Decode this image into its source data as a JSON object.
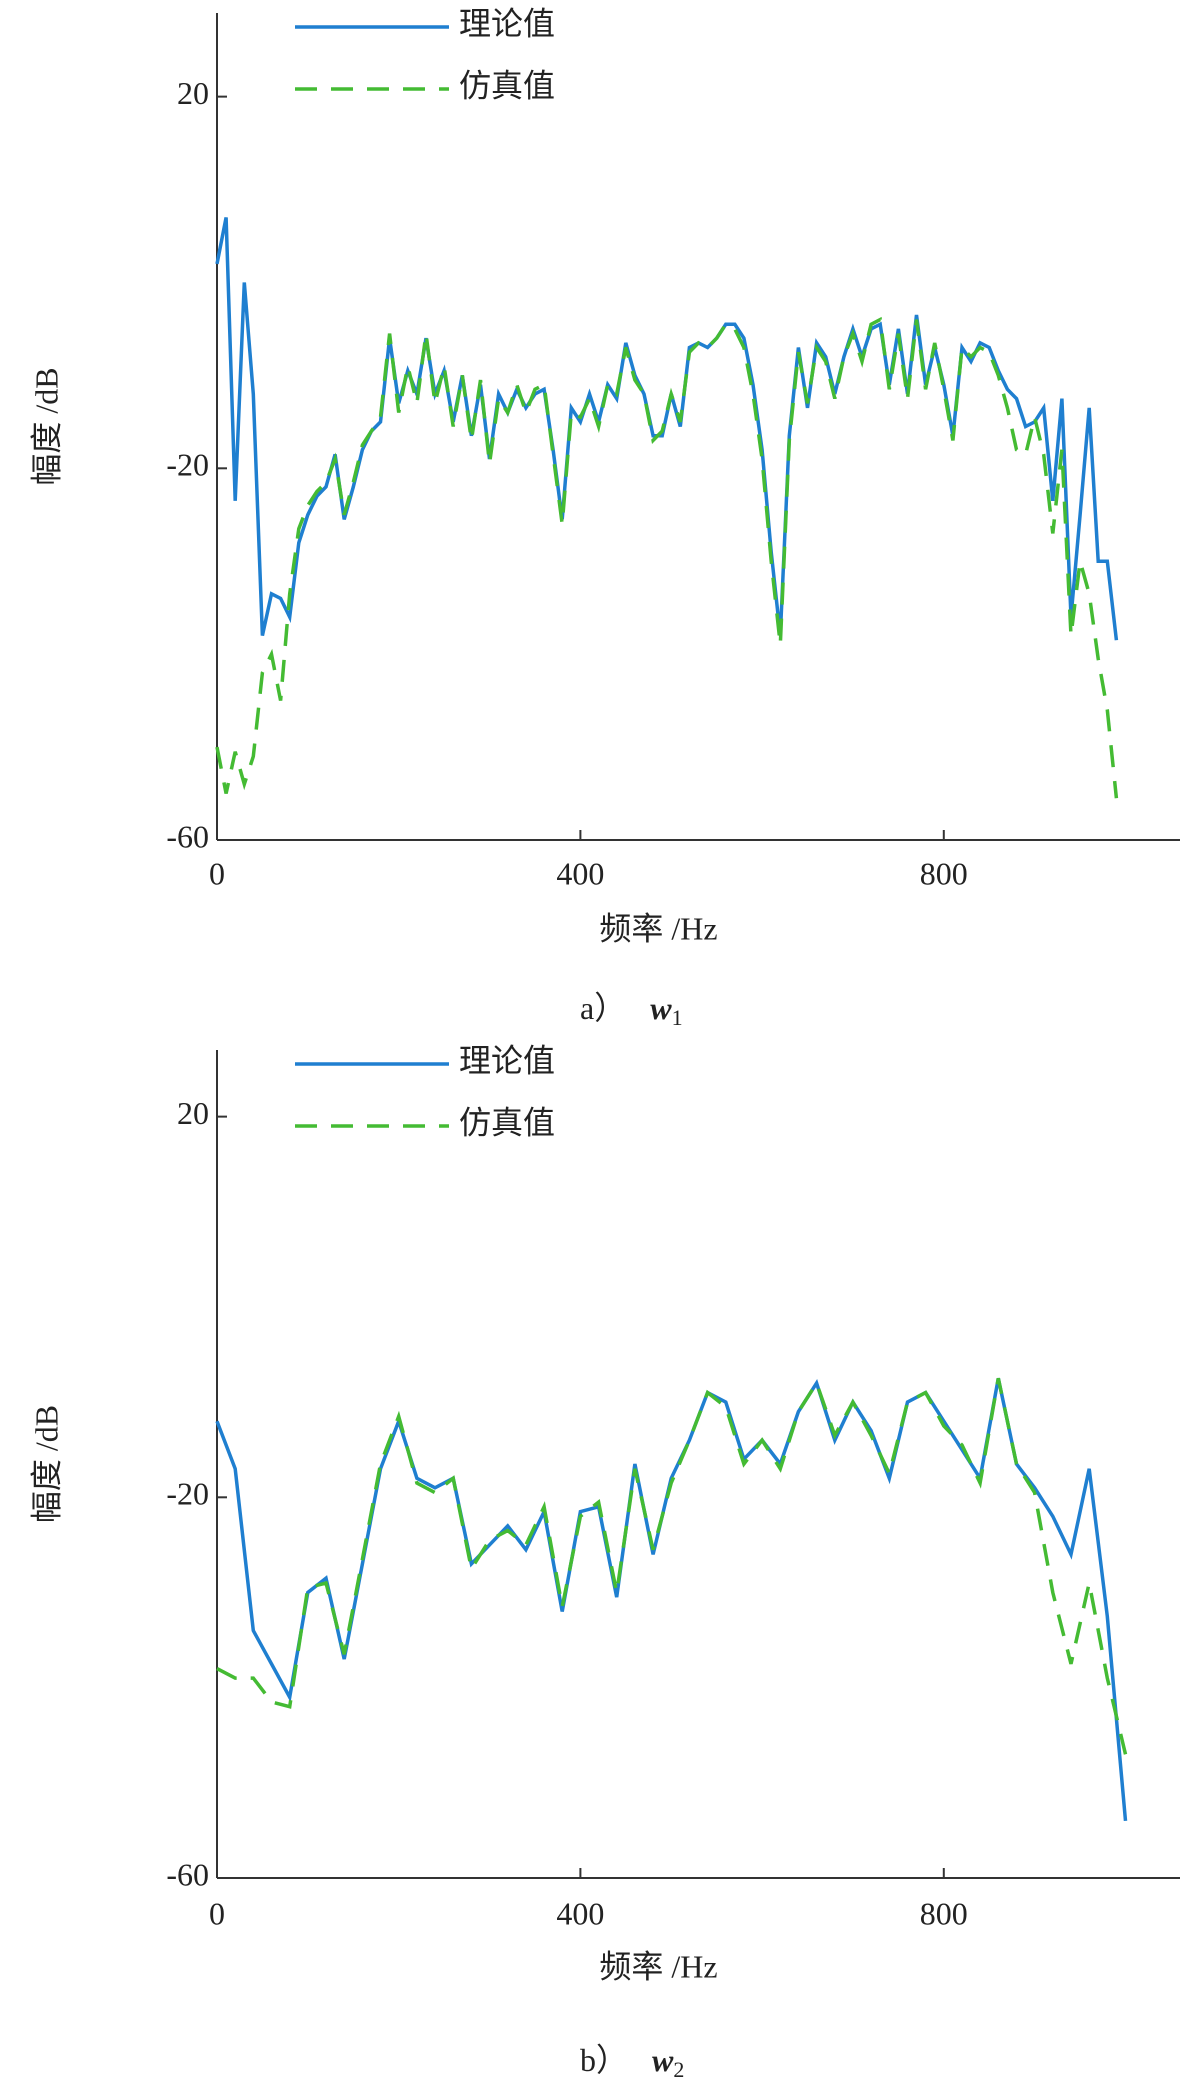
{
  "chart_data": [
    {
      "type": "line",
      "ylabel": "幅度 /dB",
      "xlabel": "频率 /Hz",
      "caption_label": "a）",
      "caption_symbol": "w",
      "caption_subscript": "1",
      "xlim": [
        0,
        1060
      ],
      "ylim": [
        -60,
        29
      ],
      "xticks": [
        0,
        400,
        800
      ],
      "yticks": [
        -60,
        -20,
        20
      ],
      "legend": "upper left",
      "x": [
        0,
        10,
        20,
        30,
        40,
        50,
        60,
        70,
        80,
        90,
        100,
        110,
        120,
        130,
        140,
        150,
        160,
        170,
        180,
        190,
        200,
        210,
        220,
        230,
        240,
        250,
        260,
        270,
        280,
        290,
        300,
        310,
        320,
        330,
        340,
        350,
        360,
        370,
        380,
        390,
        400,
        410,
        420,
        430,
        440,
        450,
        460,
        470,
        480,
        490,
        500,
        510,
        520,
        530,
        540,
        550,
        560,
        570,
        580,
        590,
        600,
        610,
        620,
        630,
        640,
        650,
        660,
        670,
        680,
        690,
        700,
        710,
        720,
        730,
        740,
        750,
        760,
        770,
        780,
        790,
        800,
        810,
        820,
        830,
        840,
        850,
        860,
        870,
        880,
        890,
        900,
        910,
        920,
        930,
        940,
        950,
        960,
        970,
        980,
        990
      ],
      "series": [
        {
          "name": "理论值",
          "color": "#1f7fd0",
          "linestyle": "solid",
          "values": [
            2,
            7,
            -23.5,
            0,
            -12,
            -38,
            -33.5,
            -34,
            -36,
            -28,
            -25,
            -23,
            -22,
            -18.5,
            -25.5,
            -22,
            -18,
            -16,
            -15,
            -6,
            -13,
            -9.5,
            -12,
            -6,
            -12,
            -9.5,
            -15,
            -10,
            -16.5,
            -11,
            -19,
            -12,
            -14,
            -11.5,
            -13.5,
            -12,
            -11.5,
            -18,
            -25.5,
            -13.5,
            -15,
            -12,
            -15,
            -11,
            -12.5,
            -6.5,
            -10,
            -12,
            -16.5,
            -16.5,
            -12,
            -15.5,
            -7,
            -6.5,
            -7,
            -6,
            -4.5,
            -4.5,
            -6,
            -11,
            -18,
            -29,
            -38,
            -16.5,
            -7,
            -13.5,
            -6.5,
            -8,
            -12,
            -8,
            -5,
            -8,
            -5,
            -4.5,
            -11,
            -5,
            -12,
            -3.5,
            -11,
            -7,
            -11,
            -16.5,
            -7,
            -8.5,
            -6.5,
            -7,
            -9.5,
            -11.5,
            -12.5,
            -15.5,
            -15,
            -13.5,
            -23.5,
            -12.5,
            -36,
            -25,
            -13.5,
            -30,
            -30,
            -38.5
          ]
        },
        {
          "name": "仿真值",
          "color": "#44bb33",
          "linestyle": "dashed",
          "values": [
            -50,
            -55,
            -50.5,
            -54,
            -51,
            -42,
            -40,
            -45,
            -33.5,
            -26.5,
            -24,
            -22.5,
            -21.5,
            -19,
            -25,
            -21.5,
            -17.5,
            -16,
            -14.5,
            -5.5,
            -14,
            -9,
            -13,
            -5.5,
            -13,
            -9,
            -15.5,
            -10,
            -17,
            -10.5,
            -19.5,
            -12.5,
            -14,
            -11,
            -14,
            -11.5,
            -11,
            -18.5,
            -26,
            -14,
            -14.5,
            -12.5,
            -15.5,
            -11,
            -12,
            -7,
            -10.5,
            -12,
            -17,
            -16,
            -12,
            -15,
            -7.5,
            -6.5,
            -7,
            -6,
            -4.5,
            -5,
            -7,
            -12,
            -19,
            -30,
            -39,
            -17,
            -7.5,
            -13,
            -7,
            -8.5,
            -12.5,
            -8,
            -5.5,
            -8.5,
            -4.5,
            -4,
            -11.5,
            -5.5,
            -12.5,
            -4,
            -11.5,
            -6.5,
            -11.5,
            -17,
            -7,
            -8,
            -7,
            -7.5,
            -10,
            -13.5,
            -18,
            -18.5,
            -14.5,
            -18.5,
            -27,
            -18,
            -38,
            -30,
            -33.5,
            -40.5,
            -46,
            -55.5
          ]
        }
      ]
    },
    {
      "type": "line",
      "ylabel": "幅度 /dB",
      "xlabel": "频率 /Hz",
      "caption_label": "b）",
      "caption_symbol": "w",
      "caption_subscript": "2",
      "xlim": [
        0,
        1060
      ],
      "ylim": [
        -60,
        27
      ],
      "xticks": [
        0,
        400,
        800
      ],
      "yticks": [
        -60,
        -20,
        20
      ],
      "legend": "upper left",
      "x": [
        0,
        20,
        40,
        60,
        80,
        100,
        120,
        140,
        160,
        180,
        200,
        220,
        240,
        260,
        280,
        300,
        320,
        340,
        360,
        380,
        400,
        420,
        440,
        460,
        480,
        500,
        520,
        540,
        560,
        580,
        600,
        620,
        640,
        660,
        680,
        700,
        720,
        740,
        760,
        780,
        800,
        820,
        840,
        860,
        880,
        900,
        920,
        940,
        960,
        980,
        1000
      ],
      "series": [
        {
          "name": "理论值",
          "color": "#1f7fd0",
          "linestyle": "solid",
          "values": [
            -12,
            -17,
            -34,
            -37.5,
            -41,
            -30,
            -28.5,
            -37,
            -27,
            -17,
            -12,
            -18,
            -19,
            -18,
            -27,
            -25,
            -23,
            -25.5,
            -21.5,
            -32,
            -21.5,
            -21,
            -30.5,
            -16.5,
            -26,
            -18,
            -14,
            -9,
            -10,
            -16,
            -14,
            -16.5,
            -11,
            -8,
            -14,
            -10,
            -13,
            -18,
            -10,
            -9,
            -12,
            -15,
            -18,
            -7.5,
            -16.5,
            -19,
            -22,
            -26,
            -17,
            -32.5,
            -54
          ]
        },
        {
          "name": "仿真值",
          "color": "#44bb33",
          "linestyle": "dashed",
          "values": [
            -38,
            -39,
            -39,
            -41.5,
            -42,
            -29.5,
            -29,
            -36.5,
            -26.5,
            -16.5,
            -11.5,
            -18.5,
            -19.5,
            -18,
            -27.5,
            -24.5,
            -23.5,
            -25,
            -21,
            -31.5,
            -22,
            -20.5,
            -30,
            -17,
            -25.5,
            -18.5,
            -14,
            -9,
            -10.5,
            -16.5,
            -14,
            -17,
            -11,
            -8,
            -13.5,
            -10,
            -13.5,
            -17.5,
            -10,
            -9,
            -12.5,
            -14.5,
            -18.5,
            -7.5,
            -16.5,
            -19.5,
            -30,
            -37.5,
            -29,
            -39,
            -47
          ]
        }
      ]
    }
  ]
}
